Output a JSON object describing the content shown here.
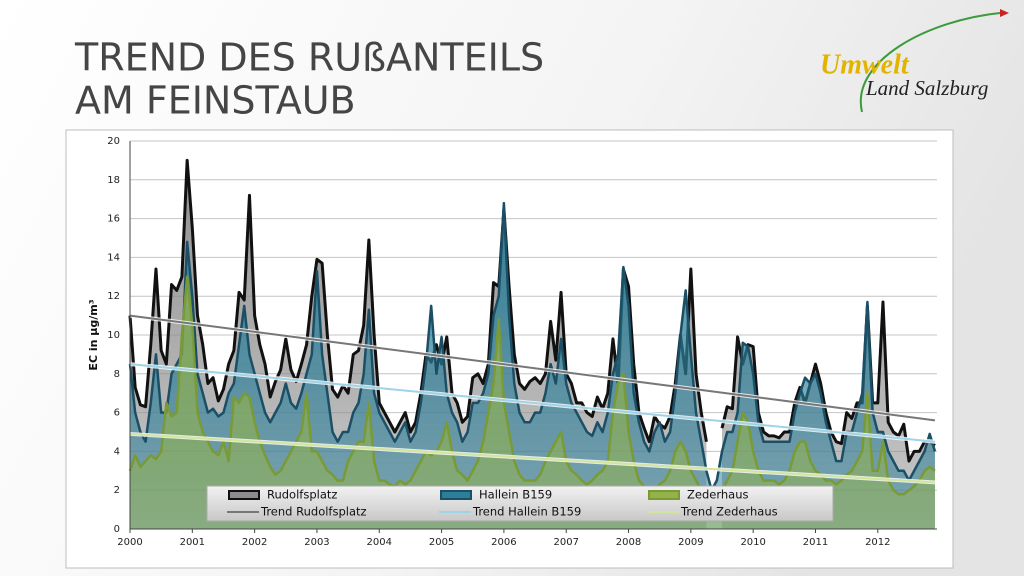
{
  "slide": {
    "title": [
      "TREND DES RUßANTEILS",
      "AM FEINSTAUB"
    ],
    "logo": [
      "Umwelt",
      "Land Salzburg"
    ]
  },
  "chart_data": {
    "type": "area",
    "ylabel": "EC in µg/m³",
    "xlim": [
      2000,
      2012.95
    ],
    "xticks": [
      2000,
      2001,
      2002,
      2003,
      2004,
      2005,
      2006,
      2007,
      2008,
      2009,
      2010,
      2011,
      2012
    ],
    "ylim": [
      0,
      20
    ],
    "yticks": [
      0,
      2,
      4,
      6,
      8,
      10,
      12,
      14,
      16,
      18,
      20
    ],
    "grid": true,
    "legend": "lower center",
    "x": [
      2000,
      2000.083,
      2000.167,
      2000.25,
      2000.333,
      2000.417,
      2000.5,
      2000.583,
      2000.667,
      2000.75,
      2000.833,
      2000.917,
      2001,
      2001.083,
      2001.167,
      2001.25,
      2001.333,
      2001.417,
      2001.5,
      2001.583,
      2001.667,
      2001.75,
      2001.833,
      2001.917,
      2002,
      2002.083,
      2002.167,
      2002.25,
      2002.333,
      2002.417,
      2002.5,
      2002.583,
      2002.667,
      2002.75,
      2002.833,
      2002.917,
      2003,
      2003.083,
      2003.167,
      2003.25,
      2003.333,
      2003.417,
      2003.5,
      2003.583,
      2003.667,
      2003.75,
      2003.833,
      2003.917,
      2004,
      2004.083,
      2004.167,
      2004.25,
      2004.333,
      2004.417,
      2004.5,
      2004.583,
      2004.667,
      2004.75,
      2004.833,
      2004.917,
      2005,
      2005.083,
      2005.167,
      2005.25,
      2005.333,
      2005.417,
      2005.5,
      2005.583,
      2005.667,
      2005.75,
      2005.833,
      2005.917,
      2006,
      2006.083,
      2006.167,
      2006.25,
      2006.333,
      2006.417,
      2006.5,
      2006.583,
      2006.667,
      2006.75,
      2006.833,
      2006.917,
      2007,
      2007.083,
      2007.167,
      2007.25,
      2007.333,
      2007.417,
      2007.5,
      2007.583,
      2007.667,
      2007.75,
      2007.833,
      2007.917,
      2008,
      2008.083,
      2008.167,
      2008.25,
      2008.333,
      2008.417,
      2008.5,
      2008.583,
      2008.667,
      2008.75,
      2008.833,
      2008.917,
      2009,
      2009.083,
      2009.167,
      2009.25,
      2009.333,
      2009.417,
      2009.5,
      2009.583,
      2009.667,
      2009.75,
      2009.833,
      2009.917,
      2010,
      2010.083,
      2010.167,
      2010.25,
      2010.333,
      2010.417,
      2010.5,
      2010.583,
      2010.667,
      2010.75,
      2010.833,
      2010.917,
      2011,
      2011.083,
      2011.167,
      2011.25,
      2011.333,
      2011.417,
      2011.5,
      2011.583,
      2011.667,
      2011.75,
      2011.833,
      2011.917,
      2012,
      2012.083,
      2012.167,
      2012.25,
      2012.333,
      2012.417,
      2012.5,
      2012.583,
      2012.667,
      2012.75,
      2012.833,
      2012.917
    ],
    "series": [
      {
        "name": "Rudolfsplatz",
        "kind": "area",
        "color": "#8c8c8c",
        "line_color": "#111111",
        "values": [
          11,
          7.3,
          6.4,
          6.3,
          9.5,
          13.4,
          9.2,
          8.5,
          12.6,
          12.3,
          13,
          19,
          15.5,
          11,
          9.5,
          7.5,
          7.8,
          6.6,
          7.2,
          8.5,
          9.2,
          12.2,
          11.8,
          17.2,
          11,
          9.5,
          8.5,
          6.8,
          7.6,
          8.2,
          9.8,
          8.2,
          7.6,
          8.5,
          9.5,
          12,
          13.9,
          13.7,
          10,
          7.2,
          6.8,
          7.4,
          7,
          9,
          9.2,
          10.5,
          14.9,
          10,
          6.5,
          6,
          5.5,
          5,
          5.5,
          6,
          5,
          5.5,
          7,
          9,
          8.6,
          9.5,
          8.5,
          9.9,
          7,
          6.5,
          5.5,
          5.8,
          7.8,
          8,
          7.5,
          8.5,
          12.7,
          12.5,
          16.5,
          12.5,
          9,
          7.5,
          7.2,
          7.6,
          7.8,
          7.5,
          8,
          10.7,
          8.7,
          12.2,
          8,
          7.5,
          6.5,
          6.5,
          6,
          5.8,
          6.8,
          6.2,
          7,
          9.8,
          7.5,
          13.4,
          12.5,
          8.5,
          6,
          5.2,
          4.5,
          5.8,
          5.4,
          5.2,
          5.8,
          7.5,
          10,
          8,
          13.4,
          8,
          6,
          4.5,
          null,
          null,
          5.2,
          6.3,
          6.2,
          9.9,
          8.5,
          9.5,
          9.4,
          6,
          5,
          4.8,
          4.8,
          4.7,
          5,
          5,
          6.5,
          7.3,
          6.5,
          7.5,
          8.5,
          7.5,
          6,
          5,
          4.5,
          4.4,
          6,
          5.7,
          6.5,
          6.5,
          11.5,
          6.5,
          6.5,
          11.7,
          5.5,
          5,
          4.8,
          5.4,
          3.5,
          4,
          4,
          4.5,
          4.5,
          4.3
        ]
      },
      {
        "name": "Hallein B159",
        "kind": "area",
        "color": "#2c7f99",
        "line_color": "#1b4f66",
        "values": [
          8.5,
          6,
          5,
          4.5,
          6.5,
          9,
          6,
          6,
          8,
          8.5,
          9,
          14.8,
          12,
          8,
          7,
          6,
          6.2,
          5.8,
          6,
          7,
          7.5,
          9.5,
          11.5,
          9,
          8,
          7,
          6,
          5.5,
          6,
          6.5,
          7.5,
          6.5,
          6.2,
          7,
          8,
          9,
          13.3,
          9,
          7,
          5,
          4.5,
          5,
          5,
          6,
          6.5,
          8,
          11.3,
          7,
          6,
          5.5,
          5,
          4.5,
          5,
          5.5,
          4.5,
          5,
          6.5,
          8.5,
          11.5,
          8,
          9.9,
          7,
          6,
          5.5,
          4.5,
          5,
          6.5,
          6.5,
          7,
          8,
          11,
          12,
          16.8,
          11,
          7.5,
          6,
          5.5,
          5.5,
          6,
          6,
          7,
          8.5,
          7.5,
          9.8,
          7.5,
          6.5,
          6,
          5.5,
          5,
          4.8,
          5.5,
          5,
          6,
          8,
          9,
          13.5,
          11.5,
          7,
          5.5,
          4.5,
          4,
          5,
          5.5,
          4.5,
          5,
          7,
          10,
          12.3,
          9,
          6,
          4.5,
          3,
          2,
          2.5,
          4,
          5,
          5,
          6,
          9.6,
          9.4,
          8,
          5.5,
          4.5,
          4.5,
          4.5,
          4.5,
          4.5,
          4.5,
          6,
          7,
          7.8,
          7.5,
          8,
          7,
          5.5,
          4.5,
          3.5,
          3.5,
          5,
          5,
          6,
          7,
          11.7,
          6,
          5,
          5,
          4,
          3.5,
          3,
          3,
          2.5,
          3,
          3.5,
          4,
          4.9,
          4
        ]
      },
      {
        "name": "Zederhaus",
        "kind": "area",
        "color": "#93b24a",
        "line_color": "#7a9a36",
        "values": [
          3,
          3.8,
          3.2,
          3.5,
          3.8,
          3.6,
          4,
          6.5,
          5.8,
          6,
          10,
          13,
          10.5,
          6,
          5,
          4.5,
          4,
          3.8,
          4.5,
          3.5,
          6.8,
          6.5,
          7,
          6.8,
          5.5,
          4.5,
          3.8,
          3.2,
          2.8,
          3,
          3.5,
          4,
          4.5,
          5,
          7,
          4,
          4,
          3.5,
          3,
          2.8,
          2.5,
          2.5,
          3.5,
          4,
          4.5,
          4.5,
          6.5,
          3.5,
          2.5,
          2.5,
          2.3,
          2.2,
          2.5,
          2.3,
          2.5,
          3,
          3.5,
          4,
          3.8,
          4,
          4.5,
          5.5,
          4,
          3,
          2.8,
          2.5,
          3,
          3.5,
          4.5,
          6,
          7.5,
          10.8,
          6.5,
          5,
          3.5,
          2.8,
          2.5,
          2.5,
          2.5,
          2.8,
          3.5,
          4,
          4.5,
          5,
          3.5,
          3,
          2.8,
          2.5,
          2.3,
          2.5,
          2.8,
          3,
          3.5,
          6,
          7.5,
          8,
          5,
          3.5,
          2.5,
          2.2,
          2,
          2,
          2.3,
          2.5,
          3,
          4,
          4.5,
          4,
          3,
          2.5,
          2,
          1.5,
          0.8,
          1,
          2,
          2.5,
          3,
          4.5,
          6,
          5.5,
          4,
          3,
          2.5,
          2.5,
          2.5,
          2.3,
          2.5,
          3,
          4,
          4.5,
          4.5,
          3.5,
          3,
          2.8,
          2.5,
          2.5,
          2.3,
          2.5,
          2.8,
          3,
          3.5,
          4,
          7,
          3,
          3,
          4.5,
          2.5,
          2,
          1.8,
          1.8,
          2,
          2.2,
          2.5,
          3,
          3.2,
          3
        ]
      },
      {
        "name": "Trend Rudolfsplatz",
        "kind": "line",
        "color": "#777777",
        "x": [
          2000,
          2012.917
        ],
        "values": [
          11,
          5.6
        ]
      },
      {
        "name": "Trend Hallein B159",
        "kind": "line",
        "color": "#9fd3e8",
        "x": [
          2000,
          2012.917
        ],
        "values": [
          8.5,
          4.5
        ]
      },
      {
        "name": "Trend Zederhaus",
        "kind": "line",
        "color": "#d3e49c",
        "x": [
          2000,
          2012.917
        ],
        "values": [
          4.9,
          2.4
        ]
      }
    ]
  }
}
